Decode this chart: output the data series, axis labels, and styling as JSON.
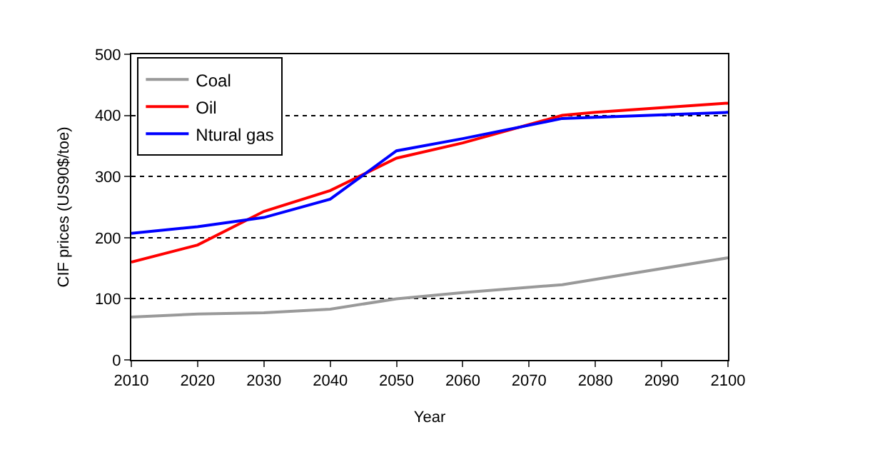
{
  "chart_data": {
    "type": "line",
    "xlabel": "Year",
    "ylabel": "CIF prices (US90$/toe)",
    "xlim": [
      2010,
      2100
    ],
    "xticks": [
      2010,
      2020,
      2030,
      2040,
      2050,
      2060,
      2070,
      2080,
      2090,
      2100
    ],
    "ylim": [
      0,
      500
    ],
    "yticks": [
      0,
      100,
      200,
      300,
      400,
      500
    ],
    "grid": "y",
    "legend": "top left",
    "marker": "none",
    "series": [
      {
        "name": "Coal",
        "color": "#999999",
        "x": [
          2010,
          2020,
          2030,
          2040,
          2050,
          2060,
          2075,
          2100
        ],
        "values": [
          70,
          75,
          77,
          83,
          100,
          110,
          123,
          167
        ]
      },
      {
        "name": "Oil",
        "color": "#ff0000",
        "x": [
          2010,
          2020,
          2030,
          2040,
          2050,
          2060,
          2075,
          2080,
          2100
        ],
        "values": [
          160,
          188,
          243,
          277,
          330,
          355,
          400,
          405,
          420
        ]
      },
      {
        "name": "Ntural gas",
        "color": "#0000ff",
        "x": [
          2010,
          2020,
          2030,
          2040,
          2050,
          2060,
          2075,
          2100
        ],
        "values": [
          207,
          218,
          233,
          263,
          342,
          362,
          395,
          405
        ]
      }
    ]
  }
}
